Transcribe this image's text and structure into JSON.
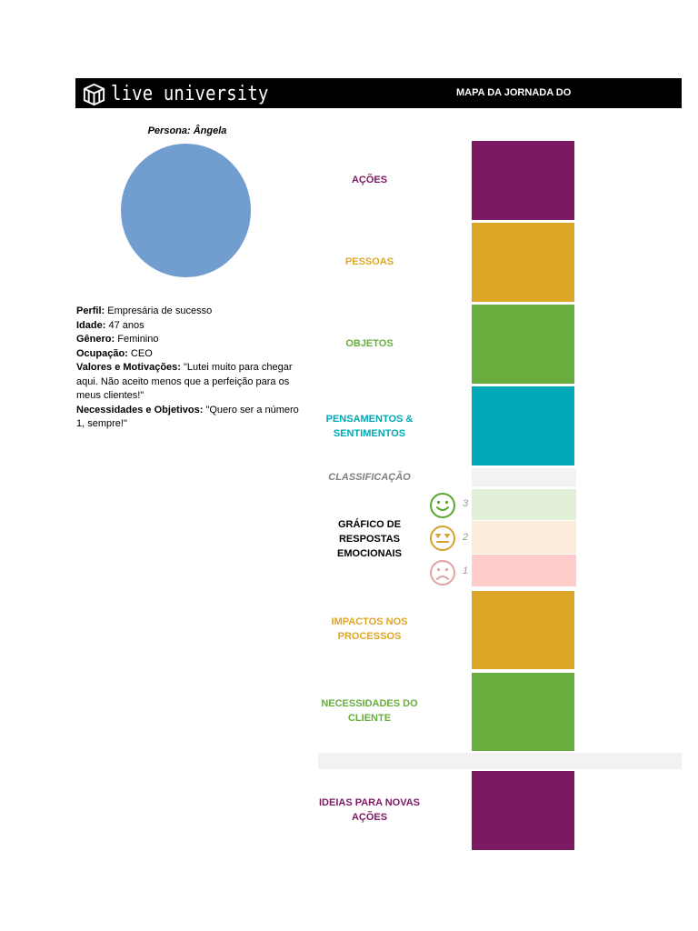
{
  "header": {
    "logo_text": "live university",
    "title": "MAPA DA JORNADA DO"
  },
  "persona": {
    "name": "Persona: Ângela",
    "avatar_color": "#719dcf",
    "fields": [
      {
        "label": "Perfil:",
        "value": " Empresária de sucesso"
      },
      {
        "label": "Idade:",
        "value": " 47 anos"
      },
      {
        "label": "Gênero:",
        "value": " Feminino"
      },
      {
        "label": "Ocupação:",
        "value": " CEO"
      },
      {
        "label": "Valores e Motivações:",
        "value": " \"Lutei muito para chegar aqui. Não aceito menos que a perfeição para os meus clientes!\""
      },
      {
        "label": "Necessidades e Objetivos:",
        "value": " \"Quero ser a número 1, sempre!\""
      }
    ]
  },
  "rows": [
    {
      "label": "AÇÕES",
      "color": "#7b1a63"
    },
    {
      "label": "PESSOAS",
      "color": "#dea627"
    },
    {
      "label": "OBJETOS",
      "color": "#69ad3f"
    },
    {
      "label": "PENSAMENTOS & SENTIMENTOS",
      "color": "#00a9b7"
    },
    {
      "label": "CLASSIFICAÇÃO",
      "color": "#7f7f7f"
    },
    {
      "label": "GRÁFICO DE RESPOSTAS EMOCIONAIS",
      "color": "#000000"
    },
    {
      "label": "IMPACTOS NOS PROCESSOS",
      "color": "#dea627"
    },
    {
      "label": "NECESSIDADES DO CLIENTE",
      "color": "#69ad3f"
    },
    {
      "label": "IDEIAS PARA NOVAS AÇÕES",
      "color": "#7b1a63"
    }
  ],
  "emotion_scale": [
    {
      "score": "3",
      "face": "happy-face",
      "color": "#5aa632",
      "band": "#e2efd9"
    },
    {
      "score": "2",
      "face": "neutral-face",
      "color": "#d6a12b",
      "band": "#fbebd9"
    },
    {
      "score": "1",
      "face": "sad-face",
      "color": "#e0a3a3",
      "band": "#ffcccc"
    }
  ]
}
